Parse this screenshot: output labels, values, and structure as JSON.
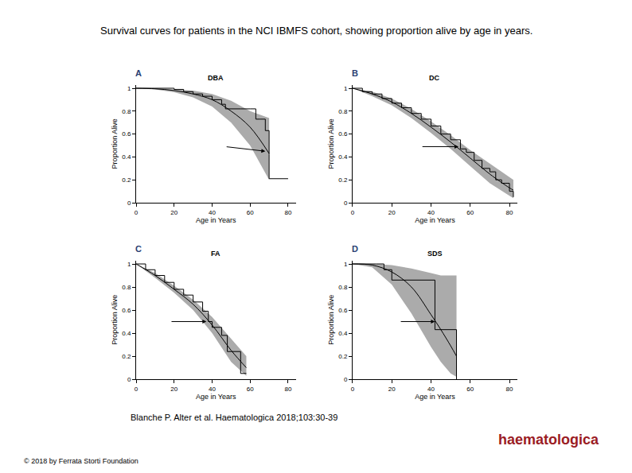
{
  "title": "Survival curves for patients in the NCI IBMFS cohort, showing proportion alive by age in years.",
  "citation": "Blanche P. Alter et al. Haematologica 2018;103:30-39",
  "copyright": "© 2018 by Ferrata Storti Foundation",
  "logo": "haematologica",
  "chart_data": [
    {
      "type": "line",
      "panel": "A",
      "title": "DBA",
      "xlabel": "Age in Years",
      "ylabel": "Proportion Alive",
      "xlim": [
        0,
        84
      ],
      "ylim": [
        0,
        1.03
      ],
      "xticks": [
        0,
        20,
        40,
        60,
        80
      ],
      "yticks": [
        0,
        0.2,
        0.4,
        0.6,
        0.8,
        1
      ],
      "grid": false,
      "median_arrow": {
        "from": [
          47,
          0.49
        ],
        "to": [
          68,
          0.45
        ]
      },
      "series": [
        {
          "type": "band",
          "color": "#ababab",
          "x": [
            0,
            10,
            20,
            30,
            40,
            50,
            60,
            70
          ],
          "lower": [
            1,
            0.99,
            0.965,
            0.92,
            0.84,
            0.7,
            0.5,
            0.2
          ],
          "upper": [
            1,
            1,
            0.99,
            0.98,
            0.95,
            0.89,
            0.8,
            0.74
          ]
        },
        {
          "type": "line",
          "color": "#000000",
          "x": [
            0,
            10,
            20,
            30,
            40,
            50,
            60,
            70
          ],
          "values": [
            1,
            0.995,
            0.98,
            0.95,
            0.9,
            0.8,
            0.66,
            0.43
          ]
        },
        {
          "type": "step",
          "color": "#000000",
          "x": [
            0,
            10,
            20,
            25,
            30,
            35,
            40,
            45,
            47,
            55,
            60,
            63,
            65,
            68,
            70,
            70,
            80
          ],
          "values": [
            1,
            1,
            0.99,
            0.97,
            0.95,
            0.93,
            0.9,
            0.86,
            0.82,
            0.82,
            0.82,
            0.73,
            0.73,
            0.63,
            0.42,
            0.21,
            0.21
          ]
        }
      ]
    },
    {
      "type": "line",
      "panel": "B",
      "title": "DC",
      "xlabel": "Age in Years",
      "ylabel": "Proportion Alive",
      "xlim": [
        0,
        84
      ],
      "ylim": [
        0,
        1.03
      ],
      "xticks": [
        0,
        20,
        40,
        60,
        80
      ],
      "yticks": [
        0,
        0.2,
        0.4,
        0.6,
        0.8,
        1
      ],
      "grid": false,
      "median_arrow": {
        "from": [
          35,
          0.49
        ],
        "to": [
          54,
          0.49
        ]
      },
      "series": [
        {
          "type": "band",
          "color": "#ababab",
          "x": [
            0,
            10,
            20,
            30,
            40,
            50,
            60,
            70,
            80,
            82
          ],
          "lower": [
            1,
            0.93,
            0.85,
            0.74,
            0.61,
            0.47,
            0.32,
            0.17,
            0.06,
            0.04
          ],
          "upper": [
            1,
            0.97,
            0.91,
            0.82,
            0.71,
            0.59,
            0.46,
            0.34,
            0.22,
            0.2
          ]
        },
        {
          "type": "line",
          "color": "#000000",
          "x": [
            0,
            10,
            20,
            30,
            40,
            50,
            60,
            70,
            80,
            82
          ],
          "values": [
            1,
            0.95,
            0.88,
            0.78,
            0.66,
            0.53,
            0.39,
            0.25,
            0.13,
            0.11
          ]
        },
        {
          "type": "step",
          "color": "#000000",
          "x": [
            0,
            5,
            10,
            15,
            20,
            25,
            30,
            35,
            40,
            45,
            50,
            55,
            58,
            62,
            66,
            70,
            73,
            76,
            80,
            82
          ],
          "values": [
            1,
            0.97,
            0.95,
            0.91,
            0.87,
            0.83,
            0.78,
            0.73,
            0.67,
            0.6,
            0.55,
            0.47,
            0.44,
            0.37,
            0.3,
            0.27,
            0.2,
            0.17,
            0.1,
            0.05
          ]
        }
      ]
    },
    {
      "type": "line",
      "panel": "C",
      "title": "FA",
      "xlabel": "Age in Years",
      "ylabel": "Proportion Alive",
      "xlim": [
        0,
        84
      ],
      "ylim": [
        0,
        1.03
      ],
      "xticks": [
        0,
        20,
        40,
        60,
        80
      ],
      "yticks": [
        0,
        0.2,
        0.4,
        0.6,
        0.8,
        1
      ],
      "grid": false,
      "median_arrow": {
        "from": [
          18,
          0.5
        ],
        "to": [
          37,
          0.5
        ]
      },
      "series": [
        {
          "type": "band",
          "color": "#ababab",
          "x": [
            0,
            10,
            20,
            30,
            40,
            50,
            58
          ],
          "lower": [
            1,
            0.88,
            0.75,
            0.6,
            0.4,
            0.15,
            0.03
          ],
          "upper": [
            1,
            0.92,
            0.81,
            0.69,
            0.54,
            0.35,
            0.2
          ]
        },
        {
          "type": "line",
          "color": "#000000",
          "x": [
            0,
            10,
            20,
            30,
            40,
            50,
            58
          ],
          "values": [
            1,
            0.9,
            0.78,
            0.65,
            0.47,
            0.25,
            0.1
          ]
        },
        {
          "type": "step",
          "color": "#000000",
          "x": [
            0,
            5,
            10,
            15,
            20,
            25,
            30,
            35,
            38,
            40,
            45,
            48,
            50,
            55,
            58
          ],
          "values": [
            1,
            0.95,
            0.9,
            0.84,
            0.78,
            0.73,
            0.67,
            0.59,
            0.5,
            0.45,
            0.38,
            0.24,
            0.24,
            0.05,
            0.05
          ]
        }
      ]
    },
    {
      "type": "line",
      "panel": "D",
      "title": "SDS",
      "xlabel": "Age in Years",
      "ylabel": "Proportion Alive",
      "xlim": [
        0,
        84
      ],
      "ylim": [
        0,
        1.03
      ],
      "xticks": [
        0,
        20,
        40,
        60,
        80
      ],
      "yticks": [
        0,
        0.2,
        0.4,
        0.6,
        0.8,
        1
      ],
      "grid": false,
      "median_arrow": {
        "from": [
          24,
          0.5
        ],
        "to": [
          42,
          0.5
        ]
      },
      "series": [
        {
          "type": "band",
          "color": "#ababab",
          "x": [
            0,
            10,
            20,
            30,
            40,
            45,
            50,
            53
          ],
          "lower": [
            1,
            0.97,
            0.82,
            0.57,
            0.28,
            0.15,
            0.05,
            0.02
          ],
          "upper": [
            1,
            1,
            0.99,
            0.96,
            0.92,
            0.9,
            0.9,
            0.9
          ]
        },
        {
          "type": "line",
          "color": "#000000",
          "x": [
            0,
            10,
            20,
            30,
            40,
            45,
            50,
            53
          ],
          "values": [
            1,
            0.99,
            0.93,
            0.8,
            0.56,
            0.43,
            0.29,
            0.2
          ]
        },
        {
          "type": "step",
          "color": "#000000",
          "x": [
            0,
            12,
            16,
            20,
            42,
            53,
            53
          ],
          "values": [
            1,
            1,
            0.95,
            0.86,
            0.43,
            0.43,
            0
          ]
        }
      ]
    }
  ]
}
